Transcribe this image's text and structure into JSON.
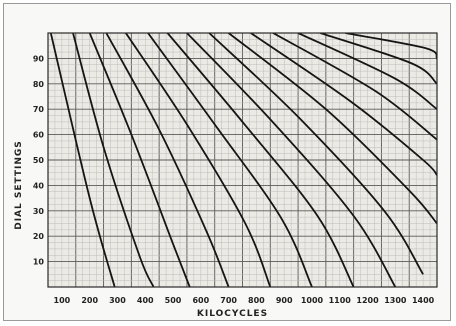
{
  "chart_data": {
    "type": "line",
    "xlabel": "KILOCYCLES",
    "ylabel": "DIAL SETTINGS",
    "x_ticks": [
      "100",
      "200",
      "300",
      "400",
      "500",
      "600",
      "700",
      "800",
      "900",
      "1000",
      "1100",
      "1200",
      "1300",
      "1400"
    ],
    "y_ticks": [
      "10",
      "20",
      "30",
      "40",
      "50",
      "60",
      "70",
      "80",
      "90"
    ],
    "xlim": [
      50,
      1450
    ],
    "ylim": [
      0,
      100
    ],
    "grid": true,
    "series": [
      {
        "x": [
          60,
          200,
          290
        ],
        "y": [
          100,
          35,
          0
        ]
      },
      {
        "x": [
          140,
          250,
          380,
          430
        ],
        "y": [
          100,
          55,
          12,
          0
        ]
      },
      {
        "x": [
          200,
          350,
          500,
          560
        ],
        "y": [
          100,
          60,
          17,
          0
        ]
      },
      {
        "x": [
          260,
          450,
          620,
          700
        ],
        "y": [
          100,
          62,
          22,
          0
        ]
      },
      {
        "x": [
          330,
          550,
          760,
          850
        ],
        "y": [
          100,
          64,
          25,
          0
        ]
      },
      {
        "x": [
          410,
          650,
          890,
          1000
        ],
        "y": [
          100,
          64,
          27,
          0
        ]
      },
      {
        "x": [
          480,
          750,
          1020,
          1150
        ],
        "y": [
          100,
          65,
          28,
          0
        ]
      },
      {
        "x": [
          550,
          850,
          1150,
          1300
        ],
        "y": [
          100,
          66,
          28,
          0
        ]
      },
      {
        "x": [
          630,
          950,
          1260,
          1400
        ],
        "y": [
          100,
          67,
          30,
          5
        ]
      },
      {
        "x": [
          700,
          1050,
          1350,
          1450
        ],
        "y": [
          100,
          70,
          38,
          25
        ]
      },
      {
        "x": [
          780,
          1140,
          1400,
          1450
        ],
        "y": [
          100,
          73,
          50,
          44
        ]
      },
      {
        "x": [
          860,
          1230,
          1450
        ],
        "y": [
          100,
          77,
          58
        ]
      },
      {
        "x": [
          950,
          1300,
          1450
        ],
        "y": [
          100,
          82,
          70
        ]
      },
      {
        "x": [
          1030,
          1360,
          1450
        ],
        "y": [
          100,
          88,
          80
        ]
      },
      {
        "x": [
          1120,
          1410,
          1450
        ],
        "y": [
          100,
          94,
          90
        ]
      }
    ]
  },
  "colors": {
    "grid_fine": "#b8b8b8",
    "grid_major": "#5a5a5a",
    "curve": "#151515",
    "background": "#ffffff",
    "plot_bg": "#eceae4"
  }
}
